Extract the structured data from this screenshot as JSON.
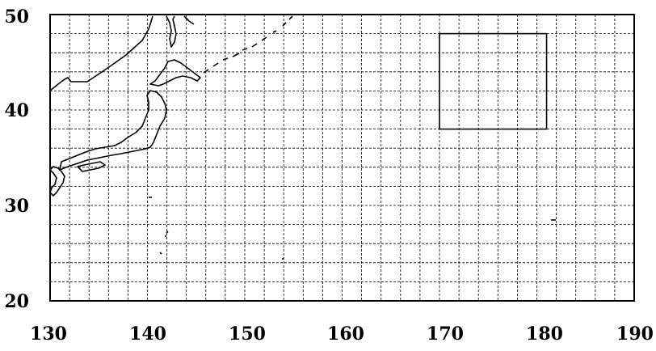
{
  "map": {
    "extent": {
      "lon": [
        130,
        190
      ],
      "lat": [
        20,
        50
      ]
    },
    "grid": {
      "lon_step": 2,
      "lat_step": 2,
      "line_style": "dashed"
    },
    "x_ticks": [
      "130",
      "140",
      "150",
      "160",
      "170",
      "180",
      "190"
    ],
    "y_ticks": [
      "50",
      "40",
      "30",
      "20"
    ],
    "region_box": {
      "lon": [
        170,
        181
      ],
      "lat": [
        38,
        48
      ]
    },
    "colors": {
      "frame": "#000000",
      "grid": "#000000",
      "coast": "#000000"
    }
  }
}
